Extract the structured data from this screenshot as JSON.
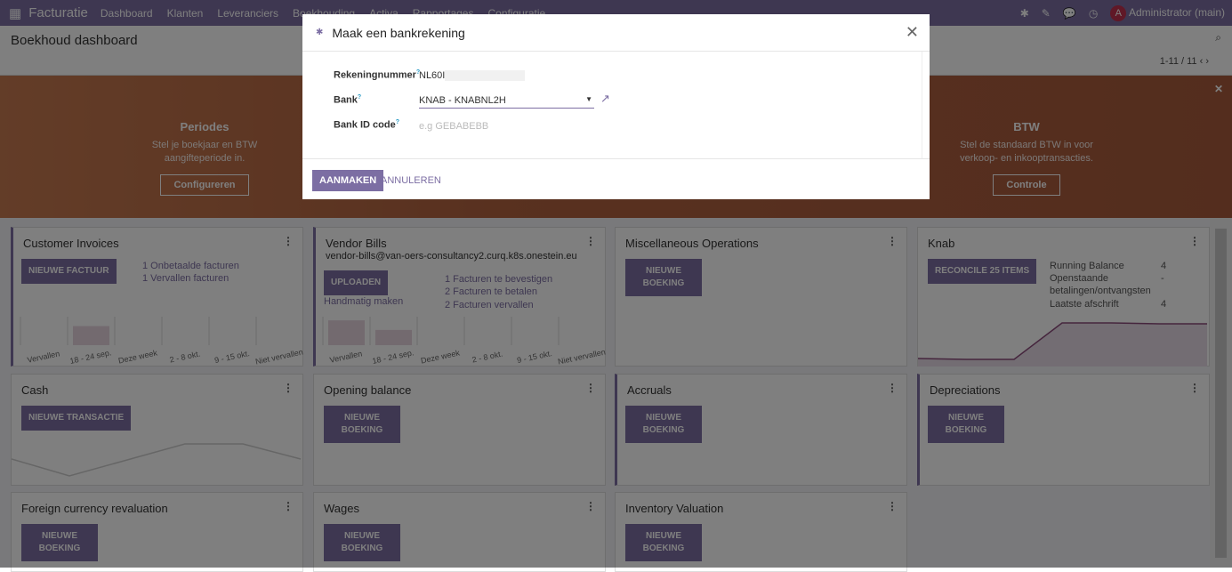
{
  "nav": {
    "app": "Facturatie",
    "menu": [
      "Dashboard",
      "Klanten",
      "Leveranciers",
      "Boekhouding",
      "Activa",
      "Rapportages",
      "Configuratie"
    ],
    "user_initial": "A",
    "user": "Administrator (main)"
  },
  "control": {
    "title": "Boekhoud dashboard",
    "pager": "1-11 / 11"
  },
  "banner": {
    "steps": [
      {
        "title": "Periodes",
        "text": "Stel je boekjaar en BTW aangifteperiode in.",
        "button": "Configureren"
      },
      {
        "title": "BTW",
        "text": "Stel de standaard BTW in voor verkoop- en inkooptransacties.",
        "button": "Controle"
      }
    ]
  },
  "cards": {
    "customer_invoices": {
      "title": "Customer Invoices",
      "button": "NIEUWE FACTUUR",
      "stats": [
        "1 Onbetaalde facturen",
        "1 Vervallen facturen"
      ],
      "chart": {
        "type": "bar",
        "categories": [
          "Vervallen",
          "18 - 24 sep.",
          "Deze week",
          "2 - 8 okt.",
          "9 - 15 okt.",
          "Niet vervallen"
        ],
        "values": [
          0,
          1,
          0,
          0,
          0,
          0
        ]
      }
    },
    "vendor_bills": {
      "title": "Vendor Bills",
      "email": "vendor-bills@van-oers-consultancy2.curq.k8s.onestein.eu",
      "button": "UPLOADEN",
      "manual": "Handmatig maken",
      "stats": [
        "1 Facturen te bevestigen",
        "2 Facturen te betalen",
        "2 Facturen vervallen"
      ],
      "chart": {
        "type": "bar",
        "categories": [
          "Vervallen",
          "18 - 24 sep.",
          "Deze week",
          "2 - 8 okt.",
          "9 - 15 okt.",
          "Niet vervallen"
        ],
        "values": [
          1.3,
          0.8,
          0,
          0,
          0,
          0
        ]
      }
    },
    "misc": {
      "title": "Miscellaneous Operations",
      "button": "NIEUWE BOEKING"
    },
    "knab": {
      "title": "Knab",
      "button": "RECONCILE 25 ITEMS",
      "stats": [
        "Running Balance",
        "Openstaande betalingen/ontvangsten",
        "Laatste afschrift"
      ],
      "values": [
        "4",
        "-",
        "4"
      ]
    },
    "cash": {
      "title": "Cash",
      "button": "NIEUWE TRANSACTIE"
    },
    "opening": {
      "title": "Opening balance",
      "button": "NIEUWE BOEKING"
    },
    "accruals": {
      "title": "Accruals",
      "button": "NIEUWE BOEKING"
    },
    "depreciations": {
      "title": "Depreciations",
      "button": "NIEUWE BOEKING"
    },
    "fx": {
      "title": "Foreign currency revaluation",
      "button": "NIEUWE BOEKING"
    },
    "wages": {
      "title": "Wages",
      "button": "NIEUWE BOEKING"
    },
    "inventory": {
      "title": "Inventory Valuation",
      "button": "NIEUWE BOEKING"
    }
  },
  "modal": {
    "title": "Maak een bankrekening",
    "fields": [
      {
        "label": "Rekeningnummer",
        "value": "NL60I"
      },
      {
        "label": "Bank",
        "value": "KNAB - KNABNL2H"
      },
      {
        "label": "Bank ID code",
        "placeholder": "e.g GEBABEBB"
      }
    ],
    "create": "AANMAKEN",
    "cancel": "ANNULEREN"
  }
}
